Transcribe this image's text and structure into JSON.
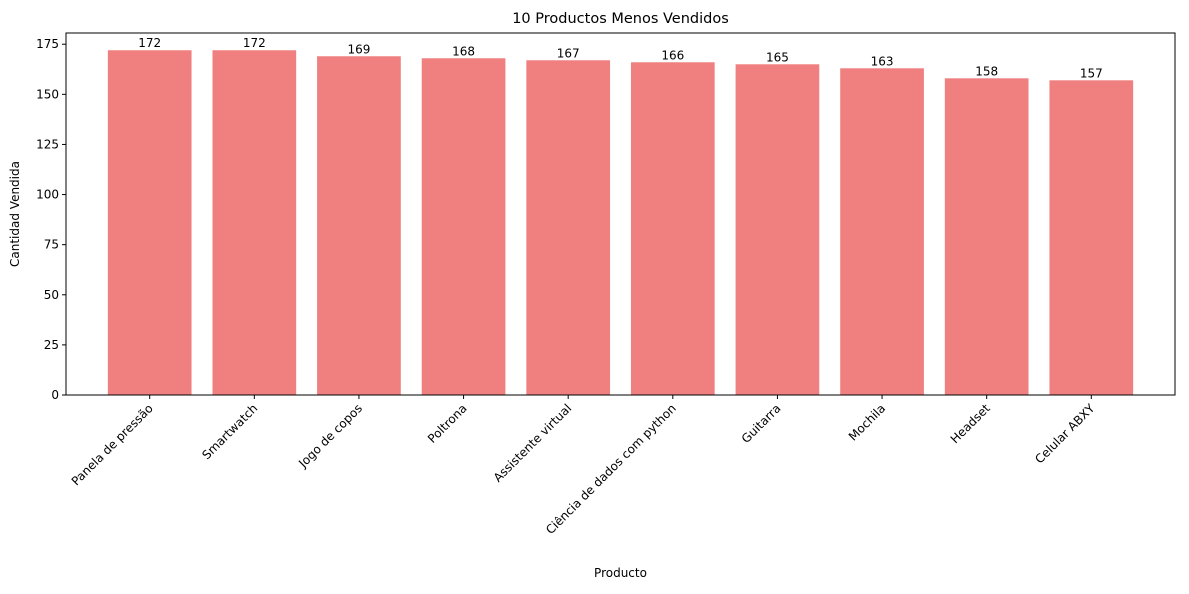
{
  "chart_data": {
    "type": "bar",
    "title": "10 Productos Menos Vendidos",
    "xlabel": "Producto",
    "ylabel": "Cantidad Vendida",
    "categories": [
      "Panela de pressão",
      "Smartwatch",
      "Jogo de copos",
      "Poltrona",
      "Assistente virtual",
      "Ciência de dados com python",
      "Guitarra",
      "Mochila",
      "Headset",
      "Celular ABXY"
    ],
    "values": [
      172,
      172,
      169,
      168,
      167,
      166,
      165,
      163,
      158,
      157
    ],
    "ylim": [
      0,
      180.6
    ],
    "yticks": [
      0,
      25,
      50,
      75,
      100,
      125,
      150,
      175
    ],
    "bar_color": "#f08080",
    "grid": false,
    "legend": "none",
    "data_labels": true
  }
}
